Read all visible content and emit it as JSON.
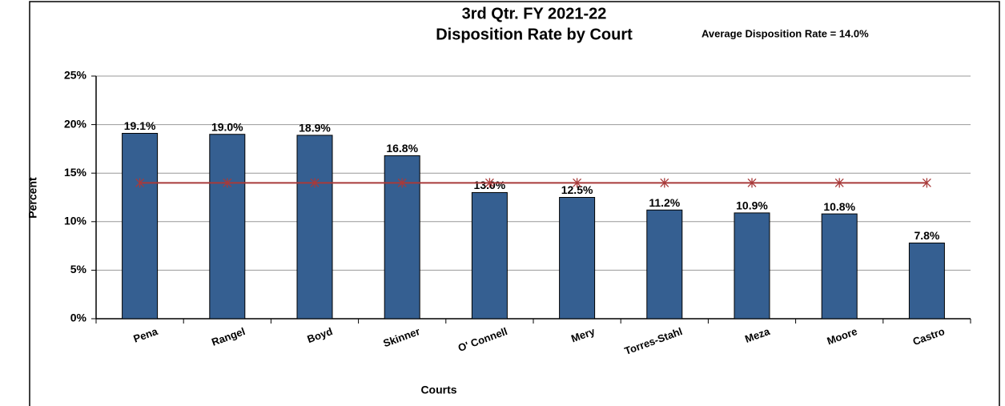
{
  "chart_data": {
    "type": "bar",
    "title": [
      "3rd Qtr. FY 2021-22",
      "Disposition Rate by Court"
    ],
    "annotation": "Average  Disposition  Rate = 14.0%",
    "x_label": "Courts",
    "y_label": "Percent",
    "categories": [
      "Pena",
      "Rangel",
      "Boyd",
      "Skinner",
      "O' Connell",
      "Mery",
      "Torres-Stahl",
      "Meza",
      "Moore",
      "Castro"
    ],
    "values": [
      19.1,
      19.0,
      18.9,
      16.8,
      13.0,
      12.5,
      11.2,
      10.9,
      10.8,
      7.8
    ],
    "value_labels": [
      "19.1%",
      "19.0%",
      "18.9%",
      "16.8%",
      "13.0%",
      "12.5%",
      "11.2%",
      "10.9%",
      "10.8%",
      "7.8%"
    ],
    "color": "#355f91",
    "average": 14.0,
    "average_color": "#a83a3a",
    "ylim": [
      0,
      25
    ],
    "yticks": [
      {
        "value": 0,
        "label": "0%"
      },
      {
        "value": 5,
        "label": "5%"
      },
      {
        "value": 10,
        "label": "10%"
      },
      {
        "value": 15,
        "label": "15%"
      },
      {
        "value": 20,
        "label": "20%"
      },
      {
        "value": 25,
        "label": "25%"
      }
    ],
    "grid": true
  }
}
